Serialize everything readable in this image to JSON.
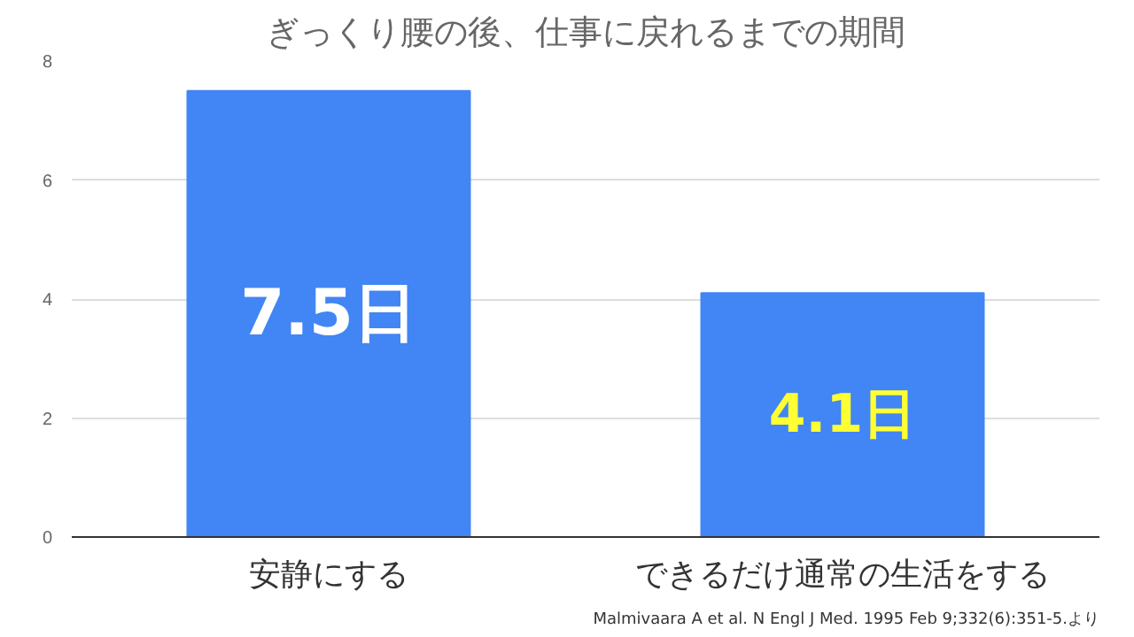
{
  "chart_data": {
    "type": "bar",
    "title": "ぎっくり腰の後、仕事に戻れるまでの期間",
    "categories": [
      "安静にする",
      "できるだけ通常の生活をする"
    ],
    "values": [
      7.5,
      4.1
    ],
    "value_labels": [
      "7.5日",
      "4.1日"
    ],
    "color": "#4285f4",
    "ylim": [
      0,
      8
    ],
    "yticks": [
      0,
      2,
      4,
      6,
      8
    ],
    "grid": "y",
    "annotations": [
      "Malmivaara A et al. N Engl J Med. 1995 Feb 9;332(6):351-5.より"
    ]
  }
}
